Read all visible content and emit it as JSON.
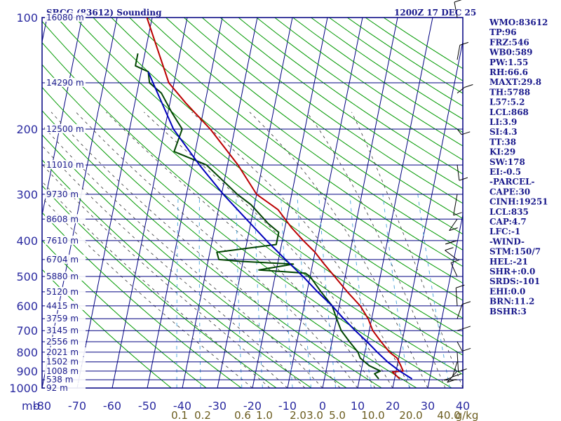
{
  "header": {
    "station": "SBCG (83612) Sounding",
    "time": "1200Z 17 DEC 25"
  },
  "colors": {
    "frame": "#000080",
    "dry_adiabat": "#009900",
    "moist_adiabat": "#333333",
    "mixing_ratio": "#55aadd",
    "temperature": "#bb0000",
    "dewpoint": "#004400",
    "parcel": "#0000bb",
    "wind": "#000000"
  },
  "chart_data": {
    "type": "line",
    "title": "SBCG (83612) Sounding",
    "diagram": "skew-t log-p",
    "y_axis": {
      "unit": "mb",
      "scale": "log",
      "range": [
        100,
        1000
      ],
      "ticks": [
        100,
        200,
        300,
        400,
        500,
        600,
        700,
        800,
        900,
        1000
      ],
      "extra_gridlines": [
        150,
        250,
        350,
        450,
        550,
        650,
        750,
        850,
        950
      ]
    },
    "x_axis": {
      "unit_label": "mb",
      "range": [
        -80,
        40
      ],
      "ticks": [
        "-80",
        "-70",
        "-60",
        "-50",
        "-40",
        "-30",
        "-20",
        "-10",
        "0",
        "10",
        "20",
        "30",
        "40"
      ]
    },
    "mixing_ratio_labels": [
      "0.1",
      "0.2",
      "0.6",
      "1.0",
      "2.0",
      "3.0",
      "5.0",
      "10.0",
      "20.0",
      "40.0",
      "g/kg"
    ],
    "height_labels": [
      {
        "pressure": 100,
        "label": "16080 m"
      },
      {
        "pressure": 150,
        "label": "14290 m"
      },
      {
        "pressure": 200,
        "label": "12500 m"
      },
      {
        "pressure": 250,
        "label": "11010 m"
      },
      {
        "pressure": 300,
        "label": "9730 m"
      },
      {
        "pressure": 350,
        "label": "8608 m"
      },
      {
        "pressure": 400,
        "label": "7610 m"
      },
      {
        "pressure": 450,
        "label": "6704 m"
      },
      {
        "pressure": 500,
        "label": "5880 m"
      },
      {
        "pressure": 550,
        "label": "5120 m"
      },
      {
        "pressure": 600,
        "label": "4415 m"
      },
      {
        "pressure": 650,
        "label": "3759 m"
      },
      {
        "pressure": 700,
        "label": "3145 m"
      },
      {
        "pressure": 750,
        "label": "2556 m"
      },
      {
        "pressure": 800,
        "label": "2021 m"
      },
      {
        "pressure": 850,
        "label": "1502 m"
      },
      {
        "pressure": 900,
        "label": "1008 m"
      },
      {
        "pressure": 950,
        "label": "538 m"
      },
      {
        "pressure": 1000,
        "label": "92 m"
      }
    ],
    "series": [
      {
        "key": "temperature",
        "points": [
          [
            945,
            21.5
          ],
          [
            905,
            19
          ],
          [
            900,
            22
          ],
          [
            870,
            21
          ],
          [
            830,
            19.5
          ],
          [
            800,
            17
          ],
          [
            750,
            14
          ],
          [
            700,
            11
          ],
          [
            650,
            9
          ],
          [
            600,
            6
          ],
          [
            550,
            1.5
          ],
          [
            500,
            -3
          ],
          [
            460,
            -7
          ],
          [
            430,
            -10
          ],
          [
            400,
            -14
          ],
          [
            370,
            -18
          ],
          [
            330,
            -23
          ],
          [
            300,
            -30
          ],
          [
            250,
            -37
          ],
          [
            200,
            -47
          ],
          [
            170,
            -55.5
          ],
          [
            150,
            -61.5
          ],
          [
            120,
            -67
          ],
          [
            100,
            -71.5
          ]
        ]
      },
      {
        "key": "dewpoint",
        "points": [
          [
            945,
            15.5
          ],
          [
            915,
            14
          ],
          [
            900,
            15.5
          ],
          [
            870,
            12
          ],
          [
            830,
            9
          ],
          [
            800,
            8
          ],
          [
            750,
            5
          ],
          [
            700,
            2
          ],
          [
            650,
            0
          ],
          [
            600,
            -2
          ],
          [
            550,
            -6
          ],
          [
            500,
            -10
          ],
          [
            490,
            -11.5
          ],
          [
            480,
            -25
          ],
          [
            463,
            -15.5
          ],
          [
            455,
            -31
          ],
          [
            450,
            -37
          ],
          [
            430,
            -38
          ],
          [
            410,
            -21.5
          ],
          [
            380,
            -21.5
          ],
          [
            360,
            -25
          ],
          [
            320,
            -31
          ],
          [
            300,
            -35.5
          ],
          [
            250,
            -46
          ],
          [
            230,
            -56
          ],
          [
            200,
            -55
          ],
          [
            180,
            -59
          ],
          [
            160,
            -63
          ],
          [
            150,
            -67
          ],
          [
            140,
            -68
          ],
          [
            135,
            -72
          ],
          [
            125,
            -72
          ]
        ]
      },
      {
        "key": "parcel",
        "points": [
          [
            945,
            25
          ],
          [
            900,
            21
          ],
          [
            850,
            17
          ],
          [
            800,
            13.5
          ],
          [
            750,
            10
          ],
          [
            700,
            6
          ],
          [
            650,
            2
          ],
          [
            600,
            -2
          ],
          [
            550,
            -7
          ],
          [
            500,
            -12
          ],
          [
            450,
            -18
          ],
          [
            400,
            -24.5
          ],
          [
            350,
            -31.5
          ],
          [
            300,
            -39.5
          ],
          [
            250,
            -48
          ],
          [
            200,
            -57.5
          ],
          [
            150,
            -66
          ],
          [
            140,
            -68
          ]
        ]
      }
    ],
    "wind_barbs": [
      {
        "pressure": 100
      },
      {
        "pressure": 130
      },
      {
        "pressure": 160
      },
      {
        "pressure": 200
      },
      {
        "pressure": 250
      },
      {
        "pressure": 300
      },
      {
        "pressure": 350
      },
      {
        "pressure": 400
      },
      {
        "pressure": 450
      },
      {
        "pressure": 500
      },
      {
        "pressure": 600
      },
      {
        "pressure": 650
      },
      {
        "pressure": 700
      },
      {
        "pressure": 750
      },
      {
        "pressure": 800
      },
      {
        "pressure": 850
      },
      {
        "pressure": 900
      },
      {
        "pressure": 950
      }
    ]
  },
  "indices": [
    "WMO:83612",
    "TP:96",
    "FRZ:546",
    "WB0:589",
    "PW:1.55",
    "RH:66.6",
    "MAXT:29.8",
    "TH:5788",
    "L57:5.2",
    "LCL:868",
    "LI:3.9",
    "SI:4.3",
    "TT:38",
    "KI:29",
    "SW:178",
    "EI:-0.5",
    "-PARCEL-",
    "CAPE:30",
    "CINH:19251",
    "LCL:835",
    "CAP:4.7",
    "LFC:-1",
    "-WIND-",
    "STM:150/7",
    "HEL:-21",
    "SHR+:0.0",
    "SRDS:-101",
    "EHI:0.0",
    "BRN:11.2",
    "BSHR:3"
  ]
}
